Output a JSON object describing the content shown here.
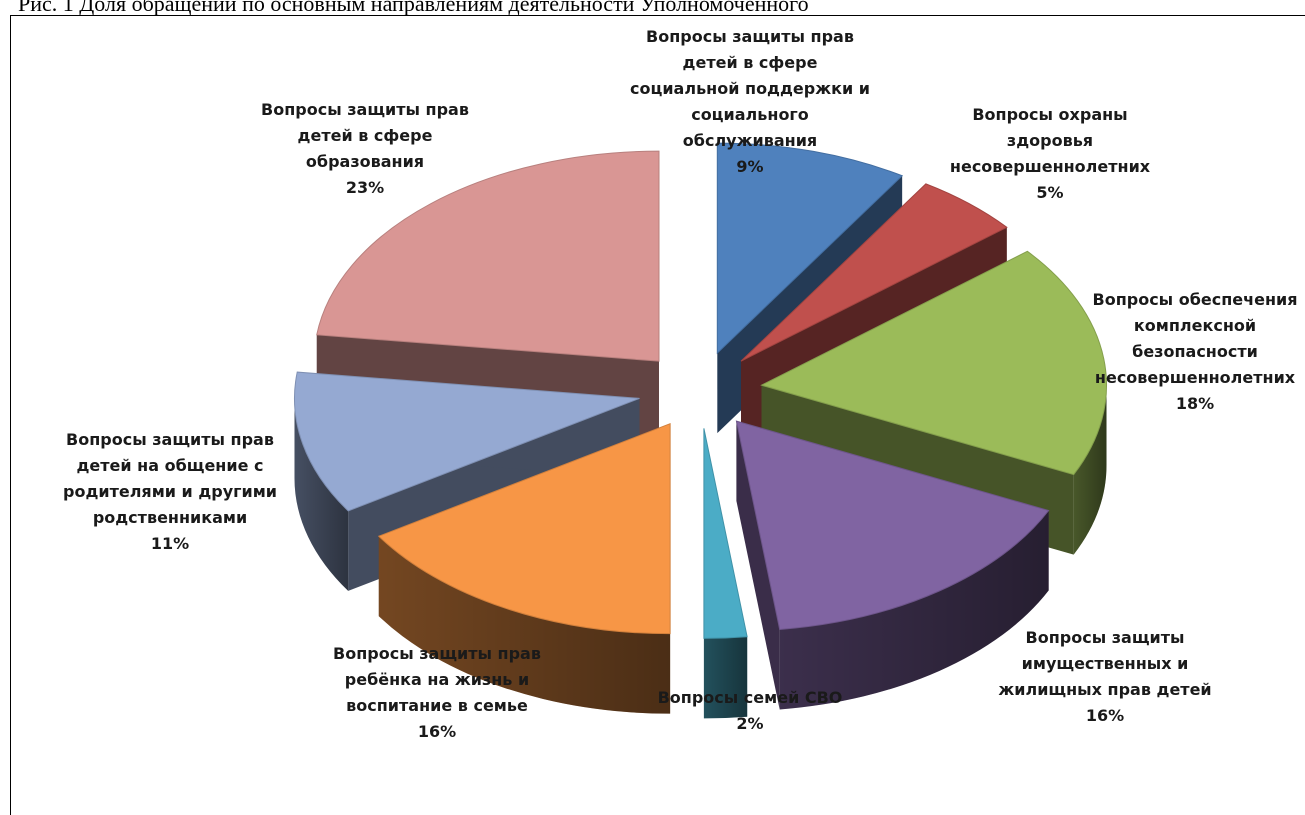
{
  "caption": "Рис. 1 Доля обращений по основным направлениям деятельности Уполномоченного",
  "chart_data": {
    "type": "pie",
    "style": "3d-exploded",
    "slices": [
      {
        "label_lines": [
          "Вопросы защиты прав",
          "детей в сфере",
          "социальной поддержки и",
          "социального",
          "обслуживания"
        ],
        "value": 9,
        "pct": "9%",
        "color": "#4f81bd"
      },
      {
        "label_lines": [
          "Вопросы охраны",
          "здоровья",
          "несовершеннолетних"
        ],
        "value": 5,
        "pct": "5%",
        "color": "#c0504d"
      },
      {
        "label_lines": [
          "Вопросы обеспечения",
          "комплексной",
          "безопасности",
          "несовершеннолетних"
        ],
        "value": 18,
        "pct": "18%",
        "color": "#9bbb59"
      },
      {
        "label_lines": [
          "Вопросы защиты",
          "имущественных и",
          "жилищных прав детей"
        ],
        "value": 16,
        "pct": "16%",
        "color": "#8064a2"
      },
      {
        "label_lines": [
          "Вопросы семей СВО"
        ],
        "value": 2,
        "pct": "2%",
        "color": "#4bacc6"
      },
      {
        "label_lines": [
          "Вопросы защиты прав",
          "ребёнка на жизнь и",
          "воспитание в семье"
        ],
        "value": 16,
        "pct": "16%",
        "color": "#f79646"
      },
      {
        "label_lines": [
          "Вопросы защиты прав",
          "детей на общение с",
          "родителями и другими",
          "родственниками"
        ],
        "value": 11,
        "pct": "11%",
        "color": "#95a9d2"
      },
      {
        "label_lines": [
          "Вопросы защиты прав",
          "детей в сфере",
          "образования"
        ],
        "value": 23,
        "pct": "23%",
        "color": "#d99694"
      }
    ]
  }
}
